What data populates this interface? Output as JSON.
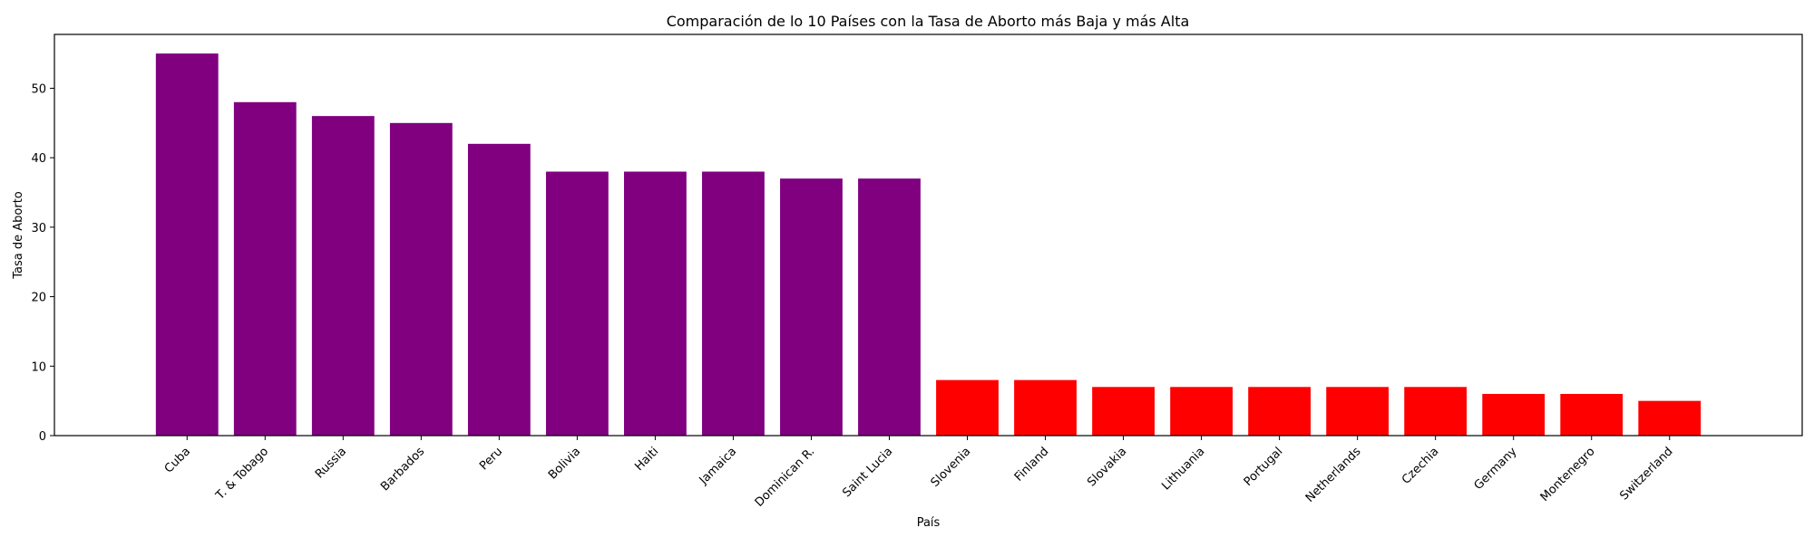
{
  "chart_data": {
    "type": "bar",
    "title": "Comparación de lo 10 Países con la Tasa de Aborto más Baja y más Alta",
    "xlabel": "País",
    "ylabel": "Tasa de Aborto",
    "categories": [
      "Cuba",
      "T. & Tobago",
      "Russia",
      "Barbados",
      "Peru",
      "Bolivia",
      "Haiti",
      "Jamaica",
      "Dominican R.",
      "Saint Lucia",
      "Slovenia",
      "Finland",
      "Slovakia",
      "Lithuania",
      "Portugal",
      "Netherlands",
      "Czechia",
      "Germany",
      "Montenegro",
      "Switzerland"
    ],
    "values": [
      55,
      48,
      46,
      45,
      42,
      38,
      38,
      38,
      37,
      37,
      8,
      8,
      7,
      7,
      7,
      7,
      7,
      6,
      6,
      5
    ],
    "bar_colors": [
      "#800080",
      "#800080",
      "#800080",
      "#800080",
      "#800080",
      "#800080",
      "#800080",
      "#800080",
      "#800080",
      "#800080",
      "#ff0000",
      "#ff0000",
      "#ff0000",
      "#ff0000",
      "#ff0000",
      "#ff0000",
      "#ff0000",
      "#ff0000",
      "#ff0000",
      "#ff0000"
    ],
    "ylim": [
      0,
      57.75
    ],
    "yticks": [
      0,
      10,
      20,
      30,
      40,
      50
    ],
    "grid": false,
    "legend": "none"
  }
}
